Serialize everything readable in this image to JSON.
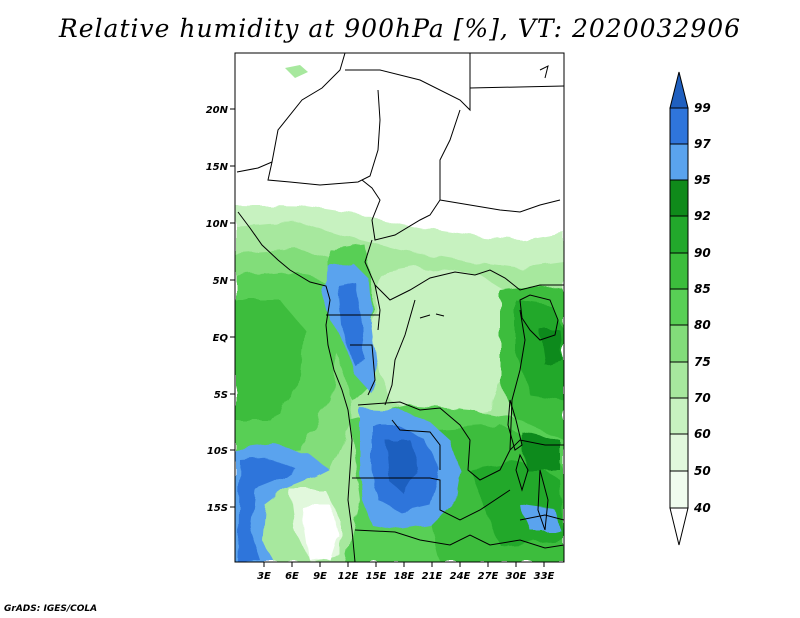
{
  "title": "Relative humidity at 900hPa [%], VT: 2020032906",
  "credit": "GrADS: IGES/COLA",
  "map": {
    "lat_ticks": [
      "20N",
      "15N",
      "10N",
      "5N",
      "EQ",
      "5S",
      "10S",
      "15S"
    ],
    "lon_ticks": [
      "3E",
      "6E",
      "9E",
      "12E",
      "15E",
      "18E",
      "21E",
      "24E",
      "27E",
      "30E",
      "33E"
    ]
  },
  "colorbar": {
    "levels": [
      "99",
      "97",
      "95",
      "92",
      "90",
      "85",
      "80",
      "75",
      "70",
      "60",
      "50",
      "40"
    ],
    "colors": {
      "above_99": "#1f5fbf",
      "97_99": "#2f75db",
      "95_97": "#5aa3ee",
      "92_95": "#0f8a1a",
      "90_92": "#22a82b",
      "85_90": "#3cbd3c",
      "80_85": "#58cf55",
      "75_80": "#82dd7a",
      "70_75": "#a7e89e",
      "60_70": "#c7f2c0",
      "50_60": "#e1f8dc",
      "40_50": "#f0fcee",
      "below_40": "#ffffff"
    }
  }
}
